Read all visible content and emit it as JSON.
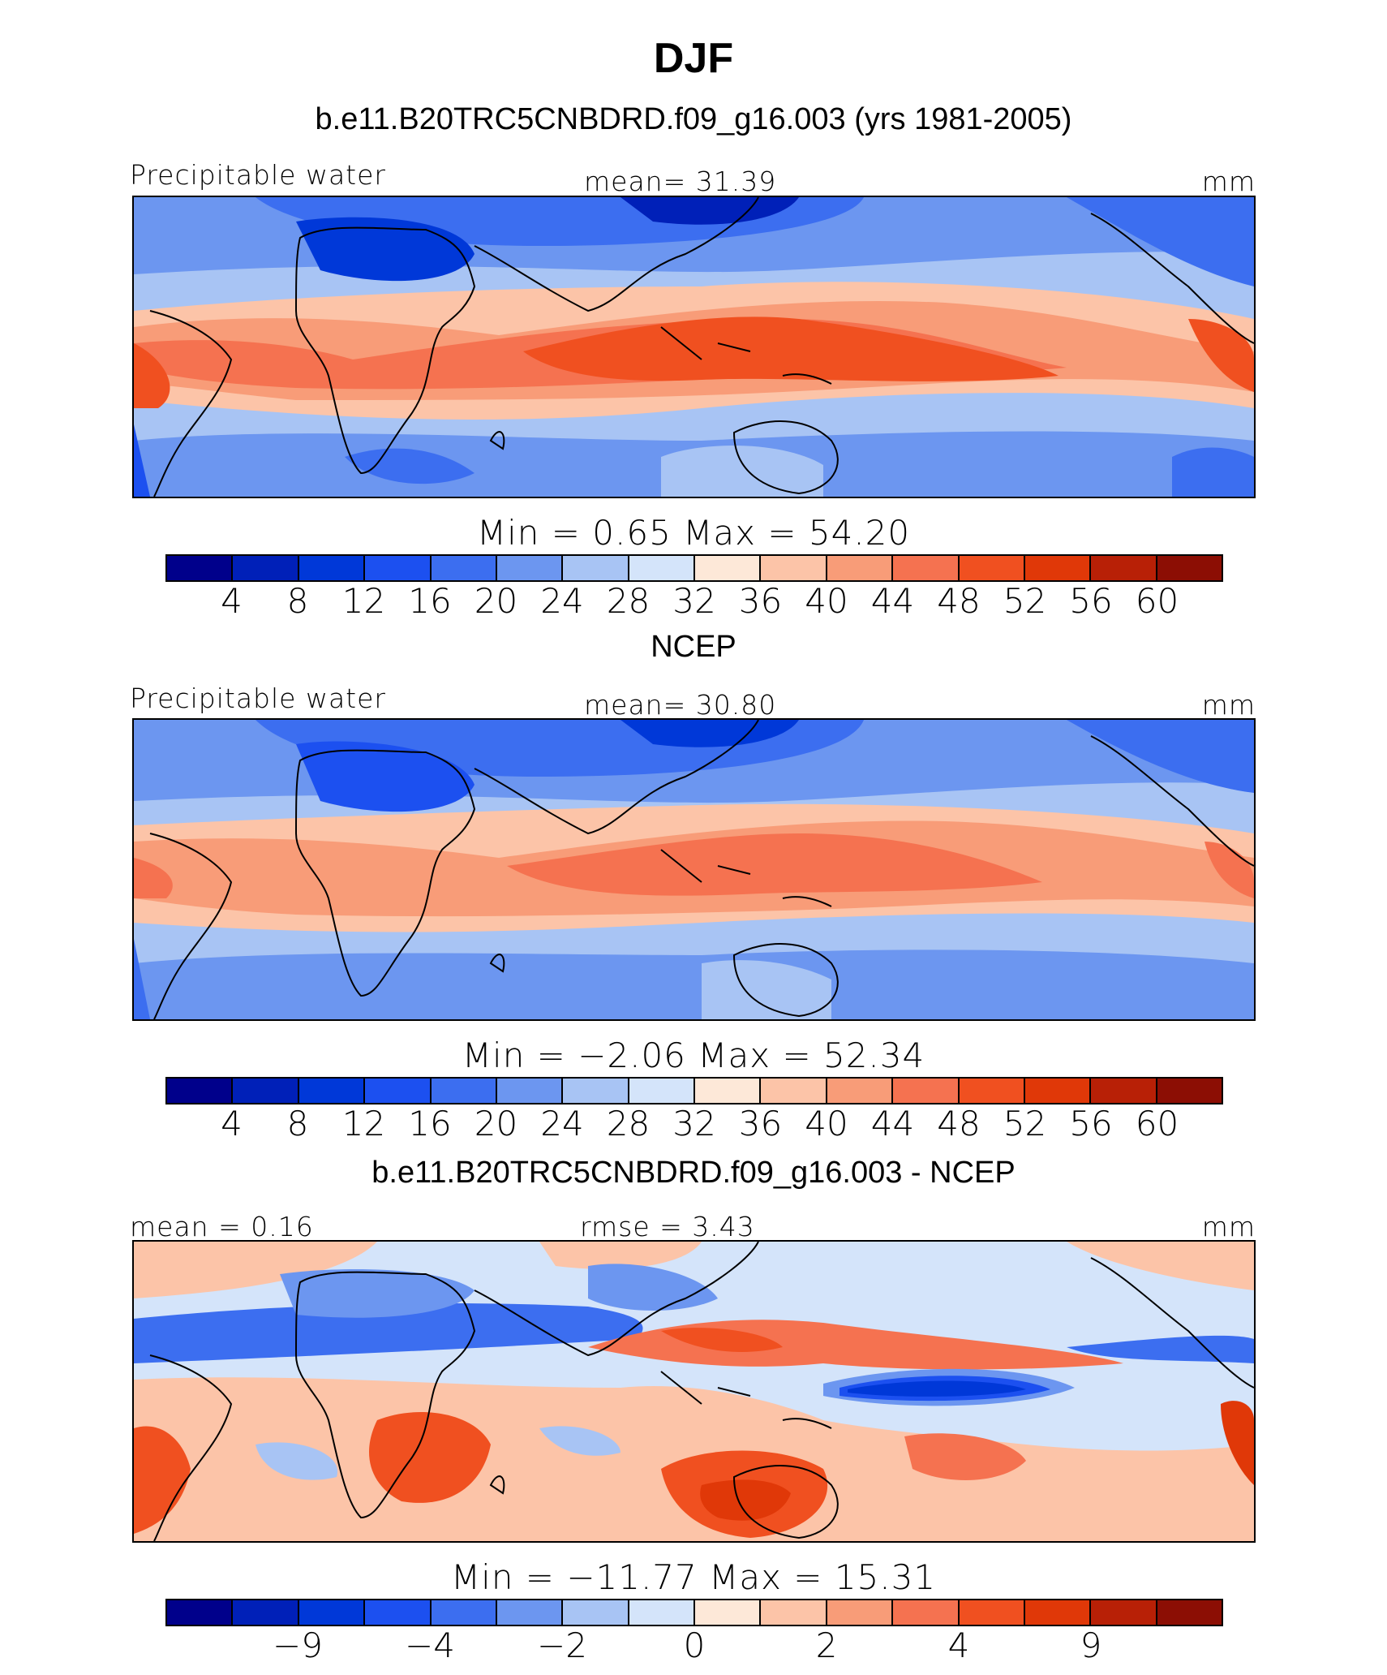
{
  "title": "DJF",
  "colors": {
    "default_scale": [
      "#00008b",
      "#0020b8",
      "#0038d8",
      "#1c50f0",
      "#3c6ef0",
      "#6c96f0",
      "#a8c4f4",
      "#d4e4fa",
      "#fde8d8",
      "#fcc4a8",
      "#f89c78",
      "#f57250",
      "#f05020",
      "#e03808",
      "#b82006",
      "#8c0e04"
    ],
    "diff_scale": [
      "#00008b",
      "#0020b8",
      "#0038d8",
      "#1c50f0",
      "#3c6ef0",
      "#6c96f0",
      "#a8c4f4",
      "#d4e4fa",
      "#fde8d8",
      "#fcc4a8",
      "#f89c78",
      "#f57250",
      "#f05020",
      "#e03808",
      "#b82006",
      "#8c0e04"
    ]
  },
  "panels": [
    {
      "title": "b.e11.B20TRC5CNBDRD.f09_g16.003 (yrs 1981-2005)",
      "left_label": "Precipitable water",
      "center_label": "mean=   31.39",
      "units": "mm",
      "minmax": "Min =    0.65  Max =   54.20",
      "ticks": [
        "4",
        "8",
        "12",
        "16",
        "20",
        "24",
        "28",
        "32",
        "36",
        "40",
        "44",
        "48",
        "52",
        "56",
        "60"
      ]
    },
    {
      "title": "NCEP",
      "left_label": "Precipitable water",
      "center_label": "mean=   30.80",
      "units": "mm",
      "minmax": "Min =  −2.06  Max =   52.34",
      "ticks": [
        "4",
        "8",
        "12",
        "16",
        "20",
        "24",
        "28",
        "32",
        "36",
        "40",
        "44",
        "48",
        "52",
        "56",
        "60"
      ]
    },
    {
      "title": "b.e11.B20TRC5CNBDRD.f09_g16.003 - NCEP",
      "left_label": "mean =   0.16",
      "center_label": "rmse =    3.43",
      "units": "mm",
      "minmax": "Min = −11.77  Max =   15.31",
      "ticks": [
        "−9",
        "−4",
        "−2",
        "0",
        "2",
        "4",
        "9"
      ]
    }
  ]
}
